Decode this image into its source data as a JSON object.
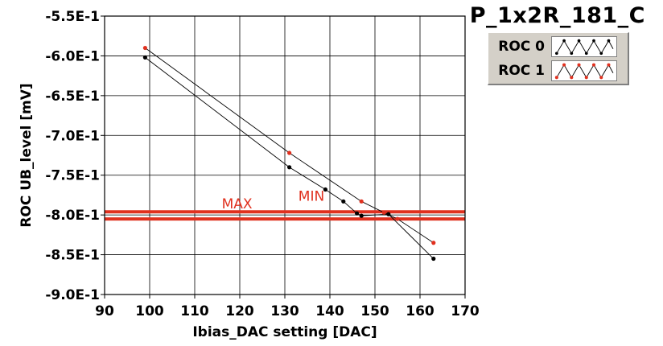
{
  "chart_data": {
    "type": "line",
    "title": "P_1x2R_181_C",
    "xlabel": "Ibias_DAC setting [DAC]",
    "ylabel": "ROC UB_level [mV]",
    "xlim": [
      90,
      170
    ],
    "ylim": [
      -0.9,
      -0.55
    ],
    "x_ticks": [
      90,
      100,
      110,
      120,
      130,
      140,
      150,
      160,
      170
    ],
    "y_ticks": [
      -0.55,
      -0.6,
      -0.65,
      -0.7,
      -0.75,
      -0.8,
      -0.85,
      -0.9
    ],
    "x_tick_labels": [
      "90",
      "100",
      "110",
      "120",
      "130",
      "140",
      "150",
      "160",
      "170"
    ],
    "y_tick_labels": [
      "-5.5E-1",
      "-6.0E-1",
      "-6.5E-1",
      "-7.0E-1",
      "-7.5E-1",
      "-8.0E-1",
      "-8.5E-1",
      "-9.0E-1"
    ],
    "grid": true,
    "legend_placement": "right, outside plot",
    "series": [
      {
        "name": "ROC 0",
        "color": "#000000",
        "x": [
          99,
          131,
          139,
          143,
          146,
          147,
          153,
          163
        ],
        "y": [
          -0.602,
          -0.74,
          -0.768,
          -0.783,
          -0.798,
          -0.801,
          -0.799,
          -0.855
        ]
      },
      {
        "name": "ROC 1",
        "color": "#e0301e",
        "x": [
          99,
          131,
          147,
          152,
          155,
          163
        ],
        "y": [
          -0.59,
          -0.722,
          -0.783,
          -0.797,
          -0.805,
          -0.835
        ]
      }
    ],
    "threshold_lines": [
      {
        "label": "MAX",
        "y": -0.796,
        "color": "#e0301e"
      },
      {
        "label": "MIN",
        "y": -0.805,
        "color": "#e0301e"
      }
    ],
    "annotations": [
      {
        "text": "MAX",
        "x": 116,
        "y": -0.792
      },
      {
        "text": "MIN",
        "x": 133,
        "y": -0.782
      }
    ]
  }
}
